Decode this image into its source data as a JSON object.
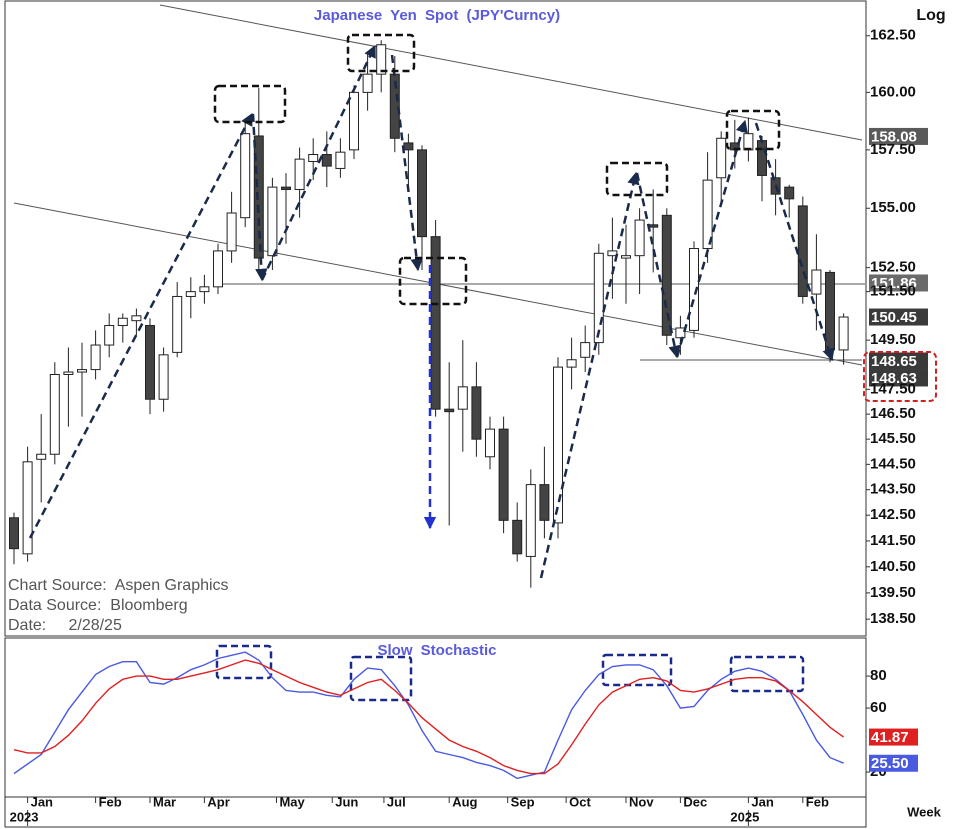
{
  "chart_data": [
    {
      "type": "candlestick",
      "title": "Japanese Yen Spot (JPY'Curncy)",
      "scale_label": "Log",
      "log_scale": true,
      "ylim": [
        137.9,
        164.1
      ],
      "yticks": [
        {
          "value": 162.5,
          "label": "162.50"
        },
        {
          "value": 160,
          "label": "160.00"
        },
        {
          "value": 157.5,
          "label": "157.50"
        },
        {
          "value": 155,
          "label": "155.00"
        },
        {
          "value": 152.5,
          "label": "152.50"
        },
        {
          "value": 151.5,
          "label": "151.50"
        },
        {
          "value": 149.5,
          "label": "149.50"
        },
        {
          "value": 147.5,
          "label": "147.50"
        },
        {
          "value": 146.5,
          "label": "146.50"
        },
        {
          "value": 145.5,
          "label": "145.50"
        },
        {
          "value": 144.5,
          "label": "144.50"
        },
        {
          "value": 143.5,
          "label": "143.50"
        },
        {
          "value": 142.5,
          "label": "142.50"
        },
        {
          "value": 141.5,
          "label": "141.50"
        },
        {
          "value": 140.5,
          "label": "140.50"
        },
        {
          "value": 139.5,
          "label": "139.50"
        },
        {
          "value": 138.5,
          "label": "138.50"
        }
      ],
      "open": [
        142.4,
        141.0,
        144.7,
        144.9,
        148.1,
        148.2,
        148.3,
        149.3,
        150.1,
        150.3,
        150.1,
        147.1,
        149.0,
        151.3,
        151.5,
        151.7,
        153.2,
        154.6,
        158.1,
        153.0,
        155.9,
        155.8,
        157.0,
        157.3,
        156.7,
        157.5,
        160.0,
        160.8,
        160.8,
        157.8,
        157.5,
        153.8,
        146.7,
        146.7,
        147.6,
        144.8,
        145.9,
        142.3,
        140.9,
        143.7,
        142.2,
        148.4,
        148.8,
        149.4,
        153.0,
        152.9,
        153.0,
        154.3,
        154.7,
        149.6,
        149.9,
        153.3,
        156.3,
        157.8,
        157.5,
        157.9,
        156.3,
        155.9,
        155.1,
        151.4,
        152.3,
        149.1
      ],
      "high": [
        142.6,
        145.2,
        146.5,
        148.6,
        149.2,
        149.4,
        149.9,
        150.6,
        150.6,
        150.8,
        150.4,
        149.2,
        151.9,
        152.1,
        152.2,
        153.5,
        155.7,
        158.8,
        160.2,
        156.3,
        156.5,
        157.6,
        158.0,
        158.3,
        158.0,
        160.3,
        161.8,
        162.3,
        161.6,
        158.2,
        157.7,
        154.5,
        148.6,
        149.5,
        148.6,
        146.4,
        146.4,
        143.0,
        144.3,
        145.2,
        148.8,
        149.6,
        150.1,
        153.5,
        154.6,
        154.3,
        155.0,
        155.8,
        155.0,
        150.5,
        153.6,
        157.4,
        158.3,
        158.8,
        158.9,
        158.1,
        157.1,
        156.0,
        155.5,
        153.9,
        152.4,
        150.6
      ],
      "low": [
        140.6,
        140.7,
        143.0,
        144.5,
        146.0,
        146.4,
        147.9,
        148.8,
        149.4,
        149.7,
        146.5,
        146.6,
        148.8,
        150.4,
        151.0,
        151.4,
        152.7,
        154.2,
        152.2,
        152.4,
        153.5,
        154.6,
        156.2,
        155.9,
        156.3,
        157.1,
        159.2,
        160.0,
        157.4,
        155.9,
        152.4,
        146.4,
        142.1,
        145.0,
        144.8,
        144.3,
        141.8,
        140.7,
        139.7,
        141.6,
        141.6,
        147.5,
        148.2,
        148.9,
        151.2,
        151.0,
        151.4,
        152.3,
        149.3,
        148.9,
        149.6,
        152.7,
        155.2,
        156.7,
        157.0,
        155.3,
        154.7,
        154.6,
        151.0,
        149.9,
        148.6,
        148.5
      ],
      "close": [
        141.2,
        144.6,
        144.9,
        148.1,
        148.2,
        148.3,
        149.3,
        150.1,
        150.4,
        150.5,
        147.1,
        148.9,
        151.3,
        151.5,
        151.7,
        153.2,
        154.8,
        158.2,
        152.9,
        155.9,
        155.8,
        157.1,
        157.3,
        156.8,
        157.4,
        160.0,
        160.8,
        162.1,
        158.0,
        157.5,
        153.8,
        146.7,
        146.6,
        147.6,
        145.5,
        145.9,
        142.3,
        141.0,
        143.7,
        142.3,
        148.4,
        148.7,
        149.4,
        153.1,
        153.2,
        153.0,
        154.5,
        154.2,
        149.7,
        150.0,
        153.3,
        156.2,
        158.0,
        157.5,
        158.2,
        156.4,
        155.6,
        155.4,
        151.3,
        152.4,
        149.1,
        150.45
      ],
      "up_color": "#ffffff",
      "down_color": "#444444",
      "price_tags": [
        {
          "value": 158.08,
          "color": "#5a5a5a"
        },
        {
          "value": 151.86,
          "color": "#6a6a6a"
        },
        {
          "value": 150.45,
          "color": "#3a3a3a"
        },
        {
          "value": 148.65,
          "color": "#3a3a3a"
        },
        {
          "value": 148.63,
          "color": "#3a3a3a"
        }
      ],
      "annotations": [
        "Chart Source:  Aspen Graphics",
        "Data Source:  Bloomberg",
        "Date:     2/28/25"
      ]
    },
    {
      "type": "line",
      "title": "Slow Stochastic",
      "ylim": [
        4.4,
        103.8
      ],
      "yticks": [
        20,
        60,
        80
      ],
      "xticks": [
        {
          "value": 1,
          "label": "Jan"
        },
        {
          "value": 6,
          "label": "Feb"
        },
        {
          "value": 10,
          "label": "Mar"
        },
        {
          "value": 14,
          "label": "Apr"
        },
        {
          "value": 19.3,
          "label": "May"
        },
        {
          "value": 23.4,
          "label": "Jun"
        },
        {
          "value": 27.2,
          "label": "Jul"
        },
        {
          "value": 32,
          "label": "Aug"
        },
        {
          "value": 36.3,
          "label": "Sep"
        },
        {
          "value": 40.6,
          "label": "Oct"
        },
        {
          "value": 45,
          "label": "Nov"
        },
        {
          "value": 49,
          "label": "Dec"
        },
        {
          "value": 54,
          "label": "Jan"
        },
        {
          "value": 58,
          "label": "Feb"
        }
      ],
      "year_ticks": [
        {
          "value": 1,
          "label": "2023"
        },
        {
          "value": 54,
          "label": "2025"
        }
      ],
      "x_label": "Week",
      "series": [
        {
          "color": "#4a5ae0",
          "tag": {
            "value": 25.5,
            "label": "25.50"
          },
          "values": [
            19,
            25,
            31,
            45,
            59,
            70,
            81,
            86,
            89,
            89,
            76,
            75,
            79,
            84,
            87,
            91,
            93,
            95,
            90,
            79,
            71,
            70,
            70,
            68,
            67,
            78,
            85,
            84,
            74,
            62,
            46,
            33,
            31,
            29,
            26,
            24,
            21,
            16,
            18,
            20,
            40,
            59,
            71,
            81,
            86,
            87,
            87,
            84,
            74,
            60,
            61,
            71,
            78,
            83,
            85,
            83,
            78,
            71,
            56,
            40,
            29,
            25.5
          ]
        },
        {
          "color": "#e02020",
          "tag": {
            "value": 41.87,
            "label": "41.87"
          },
          "values": [
            34,
            32,
            32,
            36,
            43,
            52,
            63,
            72,
            78,
            80,
            80,
            78,
            78,
            80,
            82,
            84,
            87,
            90,
            88,
            84,
            80,
            76,
            73,
            70,
            68,
            72,
            76,
            78,
            71,
            63,
            54,
            47,
            40,
            36,
            33,
            29,
            24,
            21,
            19,
            19,
            25,
            37,
            50,
            62,
            70,
            74,
            78,
            79,
            77,
            71,
            70,
            72,
            75,
            78,
            79,
            79,
            77,
            71,
            64,
            56,
            48,
            41.87
          ]
        }
      ]
    }
  ]
}
